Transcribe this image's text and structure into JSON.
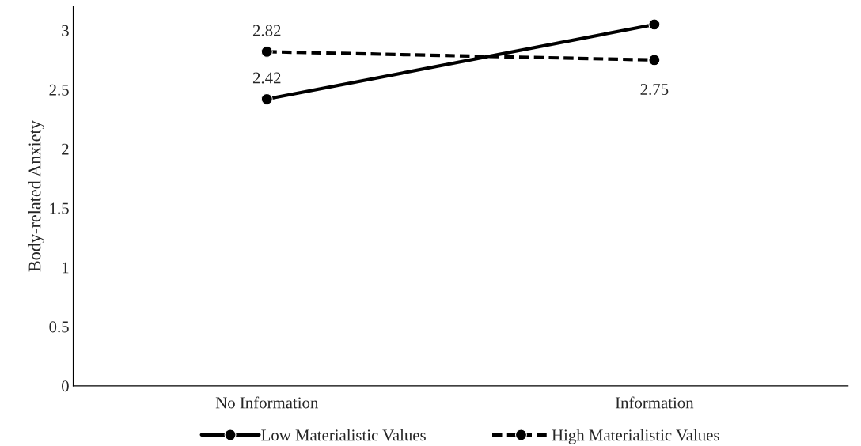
{
  "chart_data": {
    "type": "line",
    "ylabel": "Body-related Anxiety",
    "categories": [
      "No Information",
      "Information"
    ],
    "series": [
      {
        "name": "Low Materialistic Values",
        "color": "#000000",
        "values": [
          2.42,
          3.05
        ],
        "value_labels": [
          "2.42",
          null
        ],
        "line_style": "solid"
      },
      {
        "name": "High Materialistic Values",
        "color": "#000000",
        "values": [
          2.82,
          2.75
        ],
        "value_labels": [
          "2.82",
          "2.75"
        ],
        "line_style": "dashed"
      }
    ],
    "ylim": [
      0,
      3.2
    ],
    "yticks": [
      0,
      0.5,
      1,
      1.5,
      2,
      2.5,
      3
    ],
    "grid": false,
    "legend": "bottom",
    "marker": "circle"
  }
}
